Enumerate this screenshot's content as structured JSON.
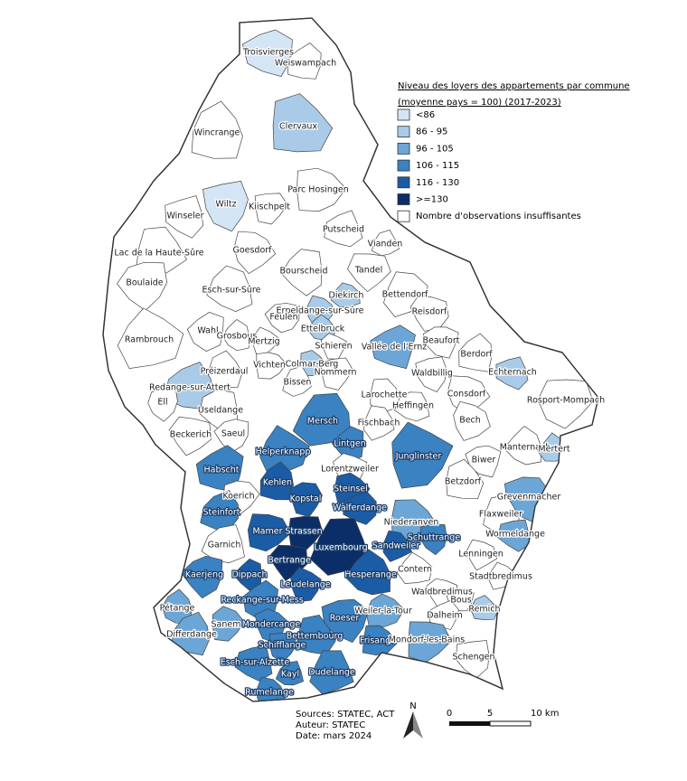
{
  "legend": {
    "title": "Niveau des loyers des appartements par commune",
    "subtitle": "(moyenne pays = 100) (2017-2023)",
    "classes": [
      {
        "label": "<86",
        "color": "#d4e5f5"
      },
      {
        "label": "86 - 95",
        "color": "#a9cbe7"
      },
      {
        "label": "96 - 105",
        "color": "#6ca6d6"
      },
      {
        "label": "106 - 115",
        "color": "#3a82c1"
      },
      {
        "label": "116 - 130",
        "color": "#1b5ca6"
      },
      {
        "label": ">=130",
        "color": "#0c2e68"
      },
      {
        "label": "Nombre d'observations insuffisantes",
        "color": "#ffffff"
      }
    ]
  },
  "communes": [
    {
      "name": "Troisvierges",
      "class": "<86"
    },
    {
      "name": "Weiswampach",
      "class": "Nombre d'observations insuffisantes"
    },
    {
      "name": "Wincrange",
      "class": "Nombre d'observations insuffisantes"
    },
    {
      "name": "Clervaux",
      "class": "86 - 95"
    },
    {
      "name": "Parc Hosingen",
      "class": "Nombre d'observations insuffisantes"
    },
    {
      "name": "Kiischpelt",
      "class": "Nombre d'observations insuffisantes"
    },
    {
      "name": "Wiltz",
      "class": "<86"
    },
    {
      "name": "Winseler",
      "class": "Nombre d'observations insuffisantes"
    },
    {
      "name": "Putscheid",
      "class": "Nombre d'observations insuffisantes"
    },
    {
      "name": "Vianden",
      "class": "Nombre d'observations insuffisantes"
    },
    {
      "name": "Lac de la Haute-Sûre",
      "class": "Nombre d'observations insuffisantes"
    },
    {
      "name": "Goesdorf",
      "class": "Nombre d'observations insuffisantes"
    },
    {
      "name": "Tandel",
      "class": "Nombre d'observations insuffisantes"
    },
    {
      "name": "Boulaide",
      "class": "Nombre d'observations insuffisantes"
    },
    {
      "name": "Bourscheid",
      "class": "Nombre d'observations insuffisantes"
    },
    {
      "name": "Esch-sur-Sûre",
      "class": "Nombre d'observations insuffisantes"
    },
    {
      "name": "Diekirch",
      "class": "86 - 95"
    },
    {
      "name": "Bettendorf",
      "class": "Nombre d'observations insuffisantes"
    },
    {
      "name": "Erpeldange-sur-Sûre",
      "class": "86 - 95"
    },
    {
      "name": "Reisdorf",
      "class": "Nombre d'observations insuffisantes"
    },
    {
      "name": "Feulen",
      "class": "Nombre d'observations insuffisantes"
    },
    {
      "name": "Wahl",
      "class": "Nombre d'observations insuffisantes"
    },
    {
      "name": "Grosbous",
      "class": "Nombre d'observations insuffisantes"
    },
    {
      "name": "Ettelbruck",
      "class": "86 - 95"
    },
    {
      "name": "Rambrouch",
      "class": "Nombre d'observations insuffisantes"
    },
    {
      "name": "Mertzig",
      "class": "Nombre d'observations insuffisantes"
    },
    {
      "name": "Schieren",
      "class": "Nombre d'observations insuffisantes"
    },
    {
      "name": "Beaufort",
      "class": "Nombre d'observations insuffisantes"
    },
    {
      "name": "Vallée de l'Ernz",
      "class": "96 - 105"
    },
    {
      "name": "Berdorf",
      "class": "Nombre d'observations insuffisantes"
    },
    {
      "name": "Préizerdaul",
      "class": "Nombre d'observations insuffisantes"
    },
    {
      "name": "Colmar-Berg",
      "class": "86 - 95"
    },
    {
      "name": "Vichten",
      "class": "Nombre d'observations insuffisantes"
    },
    {
      "name": "Nommern",
      "class": "Nombre d'observations insuffisantes"
    },
    {
      "name": "Waldbillig",
      "class": "Nombre d'observations insuffisantes"
    },
    {
      "name": "Echternach",
      "class": "86 - 95"
    },
    {
      "name": "Redange-sur-Attert",
      "class": "86 - 95"
    },
    {
      "name": "Bissen",
      "class": "Nombre d'observations insuffisantes"
    },
    {
      "name": "Larochette",
      "class": "Nombre d'observations insuffisantes"
    },
    {
      "name": "Consdorf",
      "class": "Nombre d'observations insuffisantes"
    },
    {
      "name": "Rosport-Mompach",
      "class": "Nombre d'observations insuffisantes"
    },
    {
      "name": "Ell",
      "class": "Nombre d'observations insuffisantes"
    },
    {
      "name": "Useldange",
      "class": "Nombre d'observations insuffisantes"
    },
    {
      "name": "Heffingen",
      "class": "Nombre d'observations insuffisantes"
    },
    {
      "name": "Mersch",
      "class": "106 - 115"
    },
    {
      "name": "Fischbach",
      "class": "Nombre d'observations insuffisantes"
    },
    {
      "name": "Bech",
      "class": "Nombre d'observations insuffisantes"
    },
    {
      "name": "Beckerich",
      "class": "Nombre d'observations insuffisantes"
    },
    {
      "name": "Saeul",
      "class": "Nombre d'observations insuffisantes"
    },
    {
      "name": "Lintgen",
      "class": "106 - 115"
    },
    {
      "name": "Manternach",
      "class": "Nombre d'observations insuffisantes"
    },
    {
      "name": "Mertert",
      "class": "86 - 95"
    },
    {
      "name": "Helperknapp",
      "class": "106 - 115"
    },
    {
      "name": "Junglinster",
      "class": "106 - 115"
    },
    {
      "name": "Lorentzweiler",
      "class": "Nombre d'observations insuffisantes"
    },
    {
      "name": "Biwer",
      "class": "Nombre d'observations insuffisantes"
    },
    {
      "name": "Habscht",
      "class": "106 - 115"
    },
    {
      "name": "Kehlen",
      "class": "116 - 130"
    },
    {
      "name": "Betzdorf",
      "class": "Nombre d'observations insuffisantes"
    },
    {
      "name": "Steinsel",
      "class": "116 - 130"
    },
    {
      "name": "Koerich",
      "class": "Nombre d'observations insuffisantes"
    },
    {
      "name": "Kopstal",
      "class": "116 - 130"
    },
    {
      "name": "Grevenmacher",
      "class": "96 - 105"
    },
    {
      "name": "Walferdange",
      "class": "116 - 130"
    },
    {
      "name": "Steinfort",
      "class": "106 - 115"
    },
    {
      "name": "Flaxweiler",
      "class": "Nombre d'observations insuffisantes"
    },
    {
      "name": "Niederanven",
      "class": "96 - 105"
    },
    {
      "name": "Mamer",
      "class": "116 - 130"
    },
    {
      "name": "Strassen",
      "class": ">=130"
    },
    {
      "name": "Schuttrange",
      "class": "106 - 115"
    },
    {
      "name": "Wormeldange",
      "class": "96 - 105"
    },
    {
      "name": "Garnich",
      "class": "Nombre d'observations insuffisantes"
    },
    {
      "name": "Luxembourg",
      "class": ">=130"
    },
    {
      "name": "Sandweiler",
      "class": "116 - 130"
    },
    {
      "name": "Lenningen",
      "class": "Nombre d'observations insuffisantes"
    },
    {
      "name": "Bertrange",
      "class": ">=130"
    },
    {
      "name": "Kaerjeng",
      "class": "106 - 115"
    },
    {
      "name": "Dippach",
      "class": "116 - 130"
    },
    {
      "name": "Hesperange",
      "class": "116 - 130"
    },
    {
      "name": "Contern",
      "class": "Nombre d'observations insuffisantes"
    },
    {
      "name": "Stadtbredimus",
      "class": "Nombre d'observations insuffisantes"
    },
    {
      "name": "Leudelange",
      "class": "116 - 130"
    },
    {
      "name": "Waldbredimus",
      "class": "Nombre d'observations insuffisantes"
    },
    {
      "name": "Bous",
      "class": "Nombre d'observations insuffisantes"
    },
    {
      "name": "Reckange-sur-Mess",
      "class": "106 - 115"
    },
    {
      "name": "Pétange",
      "class": "96 - 105"
    },
    {
      "name": "Remich",
      "class": "86 - 95"
    },
    {
      "name": "Weiler-la-Tour",
      "class": "96 - 105"
    },
    {
      "name": "Sanem",
      "class": "96 - 105"
    },
    {
      "name": "Mondercange",
      "class": "106 - 115"
    },
    {
      "name": "Roeser",
      "class": "106 - 115"
    },
    {
      "name": "Dalheim",
      "class": "Nombre d'observations insuffisantes"
    },
    {
      "name": "Differdange",
      "class": "96 - 105"
    },
    {
      "name": "Bettembourg",
      "class": "106 - 115"
    },
    {
      "name": "Frisange",
      "class": "106 - 115"
    },
    {
      "name": "Mondorf-les-Bains",
      "class": "96 - 105"
    },
    {
      "name": "Schifflange",
      "class": "106 - 115"
    },
    {
      "name": "Schengen",
      "class": "Nombre d'observations insuffisantes"
    },
    {
      "name": "Esch-sur-Alzette",
      "class": "106 - 115"
    },
    {
      "name": "Kayl",
      "class": "106 - 115"
    },
    {
      "name": "Dudelange",
      "class": "106 - 115"
    },
    {
      "name": "Rumelange",
      "class": "106 - 115"
    }
  ],
  "footer": {
    "sources": "Sources: STATEC, ACT",
    "author": "Auteur: STATEC",
    "date": "Date: mars 2024"
  },
  "north": "N",
  "scale": {
    "labels": [
      "0",
      "5",
      "10 km"
    ]
  }
}
